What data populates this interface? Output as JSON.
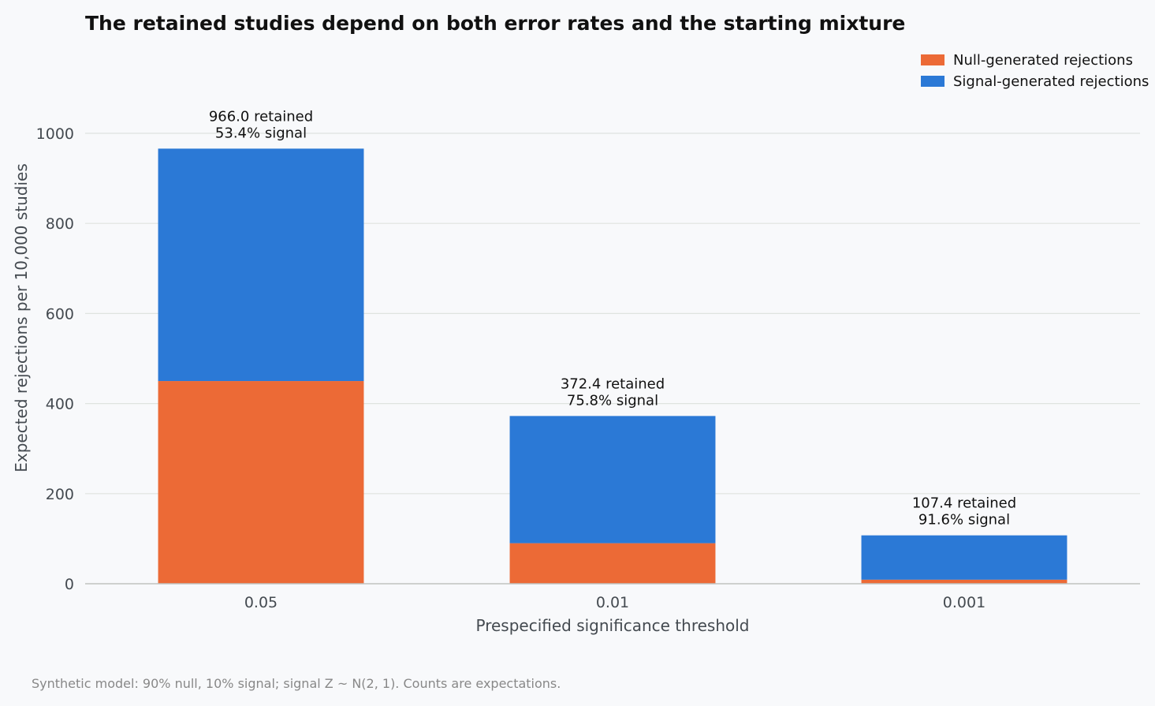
{
  "colors": {
    "null": "#ec6a36",
    "signal": "#2b79d6"
  },
  "chart_data": {
    "type": "bar",
    "stacked": true,
    "title": "The retained studies depend on both error rates and the starting mixture",
    "xlabel": "Prespecified significance threshold",
    "ylabel": "Expected rejections per 10,000 studies",
    "categories": [
      "0.05",
      "0.01",
      "0.001"
    ],
    "ylim": [
      0,
      1000
    ],
    "yticks": [
      0,
      200,
      400,
      600,
      800,
      1000
    ],
    "grid": true,
    "legend_position": "top-right",
    "series": [
      {
        "name": "Null-generated rejections",
        "values": [
          450.0,
          90.0,
          9.0
        ]
      },
      {
        "name": "Signal-generated rejections",
        "values": [
          516.0,
          282.4,
          98.4
        ]
      }
    ],
    "bar_labels": [
      [
        "966.0 retained",
        "53.4% signal"
      ],
      [
        "372.4 retained",
        "75.8% signal"
      ],
      [
        "107.4 retained",
        "91.6% signal"
      ]
    ]
  },
  "footnote": "Synthetic model: 90% null, 10% signal; signal Z ~ N(2, 1). Counts are expectations."
}
